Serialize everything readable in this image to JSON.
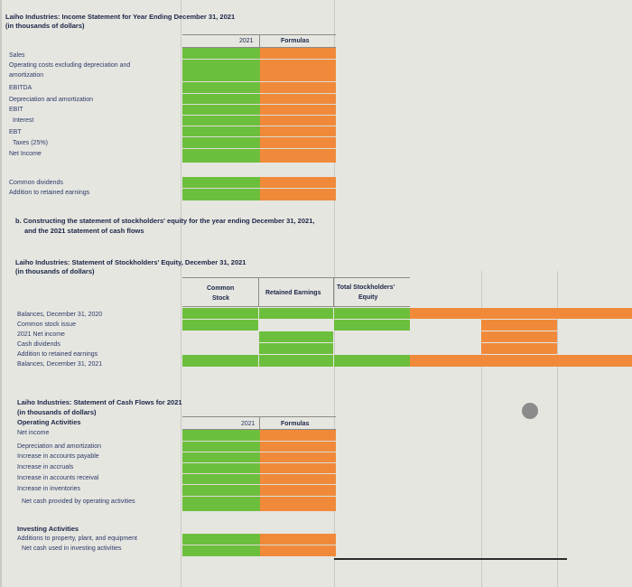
{
  "income": {
    "title": "Laiho Industries: Income Statement for Year Ending December 31, 2021",
    "subtitle": "(in thousands of dollars)",
    "col_year": "2021",
    "col_formulas": "Formulas",
    "rows": [
      "Sales",
      "Operating costs excluding depreciation and",
      "amortization",
      "EBITDA",
      "Depreciation and amortization",
      "EBIT",
      "Interest",
      "EBT",
      "Taxes (25%)",
      "Net Income"
    ],
    "extra_rows": [
      "Common dividends",
      "Addition to retained earnings"
    ]
  },
  "section_b": {
    "line1": "b. Constructing the statement of stockholders' equity for the year ending December 31, 2021,",
    "line2": "and the 2021 statement of cash flows"
  },
  "equity": {
    "title": "Laiho Industries: Statement of Stockholders' Equity, December 31, 2021",
    "subtitle": "(in thousands of dollars)",
    "col_common_1": "Common",
    "col_common_2": "Stock",
    "col_retained": "Retained Earnings",
    "col_total_1": "Total Stockholders'",
    "col_total_2": "Equity",
    "rows": [
      "Balances, December 31, 2020",
      "Common stock issue",
      "2021 Net income",
      "Cash dividends",
      "Addition to retained earnings",
      "Balances, December 31, 2021"
    ]
  },
  "cashflow": {
    "title": "Laiho Industries: Statement of Cash Flows for 2021",
    "subtitle": "(in thousands of dollars)",
    "col_year": "2021",
    "col_formulas": "Formulas",
    "operating_header": "Operating Activities",
    "operating_rows": [
      "Net income",
      "Depreciation and amortization",
      "Increase in accounts payable",
      "Increase in accruals",
      "Increase in accounts receival",
      "Increase in inventories",
      "Net cash provided by operating activities"
    ],
    "investing_header": "Investing Activities",
    "investing_rows": [
      "Additions to property, plant, and equipment",
      "Net cash used in investing activities"
    ]
  },
  "colors": {
    "input_green": "#6cbf3c",
    "formula_orange": "#f08a3a",
    "background": "#e6e6e1"
  }
}
